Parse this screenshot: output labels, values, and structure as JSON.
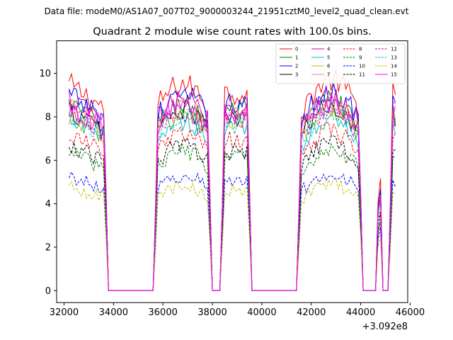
{
  "suptitle": "Data file: modeM0/AS1A07_007T02_9000003244_21951cztM0_level2_quad_clean.evt",
  "chart_data": {
    "type": "line",
    "title": "Quadrant 2 module wise count rates with 100.0s bins.",
    "xlabel": "",
    "ylabel": "",
    "x_offset_label": "+3.092e8",
    "x_offset": 309200000,
    "xlim": [
      31700,
      45900
    ],
    "ylim": [
      -0.55,
      11.5
    ],
    "xticks": [
      32000,
      34000,
      36000,
      38000,
      40000,
      42000,
      44000,
      46000
    ],
    "xtick_labels": [
      "32000",
      "34000",
      "36000",
      "38000",
      "40000",
      "42000",
      "44000",
      "46000"
    ],
    "yticks": [
      0,
      2,
      4,
      6,
      8,
      10
    ],
    "ytick_labels": [
      "0",
      "2",
      "4",
      "6",
      "8",
      "10"
    ],
    "grid": false,
    "legend_position": "upper-right",
    "bin_size_s": 100,
    "time_segments": [
      {
        "start": 32200,
        "end": 33700,
        "on": true
      },
      {
        "start": 33800,
        "end": 35600,
        "on": false
      },
      {
        "start": 35700,
        "end": 37900,
        "on": true
      },
      {
        "start": 38000,
        "end": 38300,
        "on": false
      },
      {
        "start": 38400,
        "end": 39500,
        "on": true
      },
      {
        "start": 39600,
        "end": 41400,
        "on": false
      },
      {
        "start": 41500,
        "end": 44000,
        "on": true
      },
      {
        "start": 44100,
        "end": 44600,
        "on": false
      },
      {
        "start": 44700,
        "end": 44800,
        "on": true
      },
      {
        "start": 44900,
        "end": 45100,
        "on": false
      },
      {
        "start": 45200,
        "end": 45400,
        "on": true
      }
    ],
    "series": [
      {
        "name": "0",
        "color": "#ff0000",
        "dash": "solid",
        "level": 9.5
      },
      {
        "name": "1",
        "color": "#008000",
        "dash": "solid",
        "level": 8.6
      },
      {
        "name": "2",
        "color": "#0000ff",
        "dash": "solid",
        "level": 9.0
      },
      {
        "name": "3",
        "color": "#000000",
        "dash": "solid",
        "level": 8.3
      },
      {
        "name": "4",
        "color": "#bf00bf",
        "dash": "solid",
        "level": 8.8
      },
      {
        "name": "5",
        "color": "#00bfbf",
        "dash": "solid",
        "level": 7.8
      },
      {
        "name": "6",
        "color": "#bfbf00",
        "dash": "solid",
        "level": 8.1
      },
      {
        "name": "7",
        "color": "#ff7f7f",
        "dash": "solid",
        "level": 8.4
      },
      {
        "name": "8",
        "color": "#ff0000",
        "dash": "dashed",
        "level": 7.2
      },
      {
        "name": "9",
        "color": "#008000",
        "dash": "dashed",
        "level": 6.4
      },
      {
        "name": "10",
        "color": "#0000ff",
        "dash": "dashed",
        "level": 5.3
      },
      {
        "name": "11",
        "color": "#000000",
        "dash": "dashed",
        "level": 6.7
      },
      {
        "name": "12",
        "color": "#bf00bf",
        "dash": "dashed",
        "level": 8.2
      },
      {
        "name": "13",
        "color": "#00bfbf",
        "dash": "dashed",
        "level": 8.0
      },
      {
        "name": "14",
        "color": "#bfbf00",
        "dash": "dashed",
        "level": 4.8
      },
      {
        "name": "15",
        "color": "#ff00ff",
        "dash": "solid",
        "level": 8.5
      }
    ]
  }
}
